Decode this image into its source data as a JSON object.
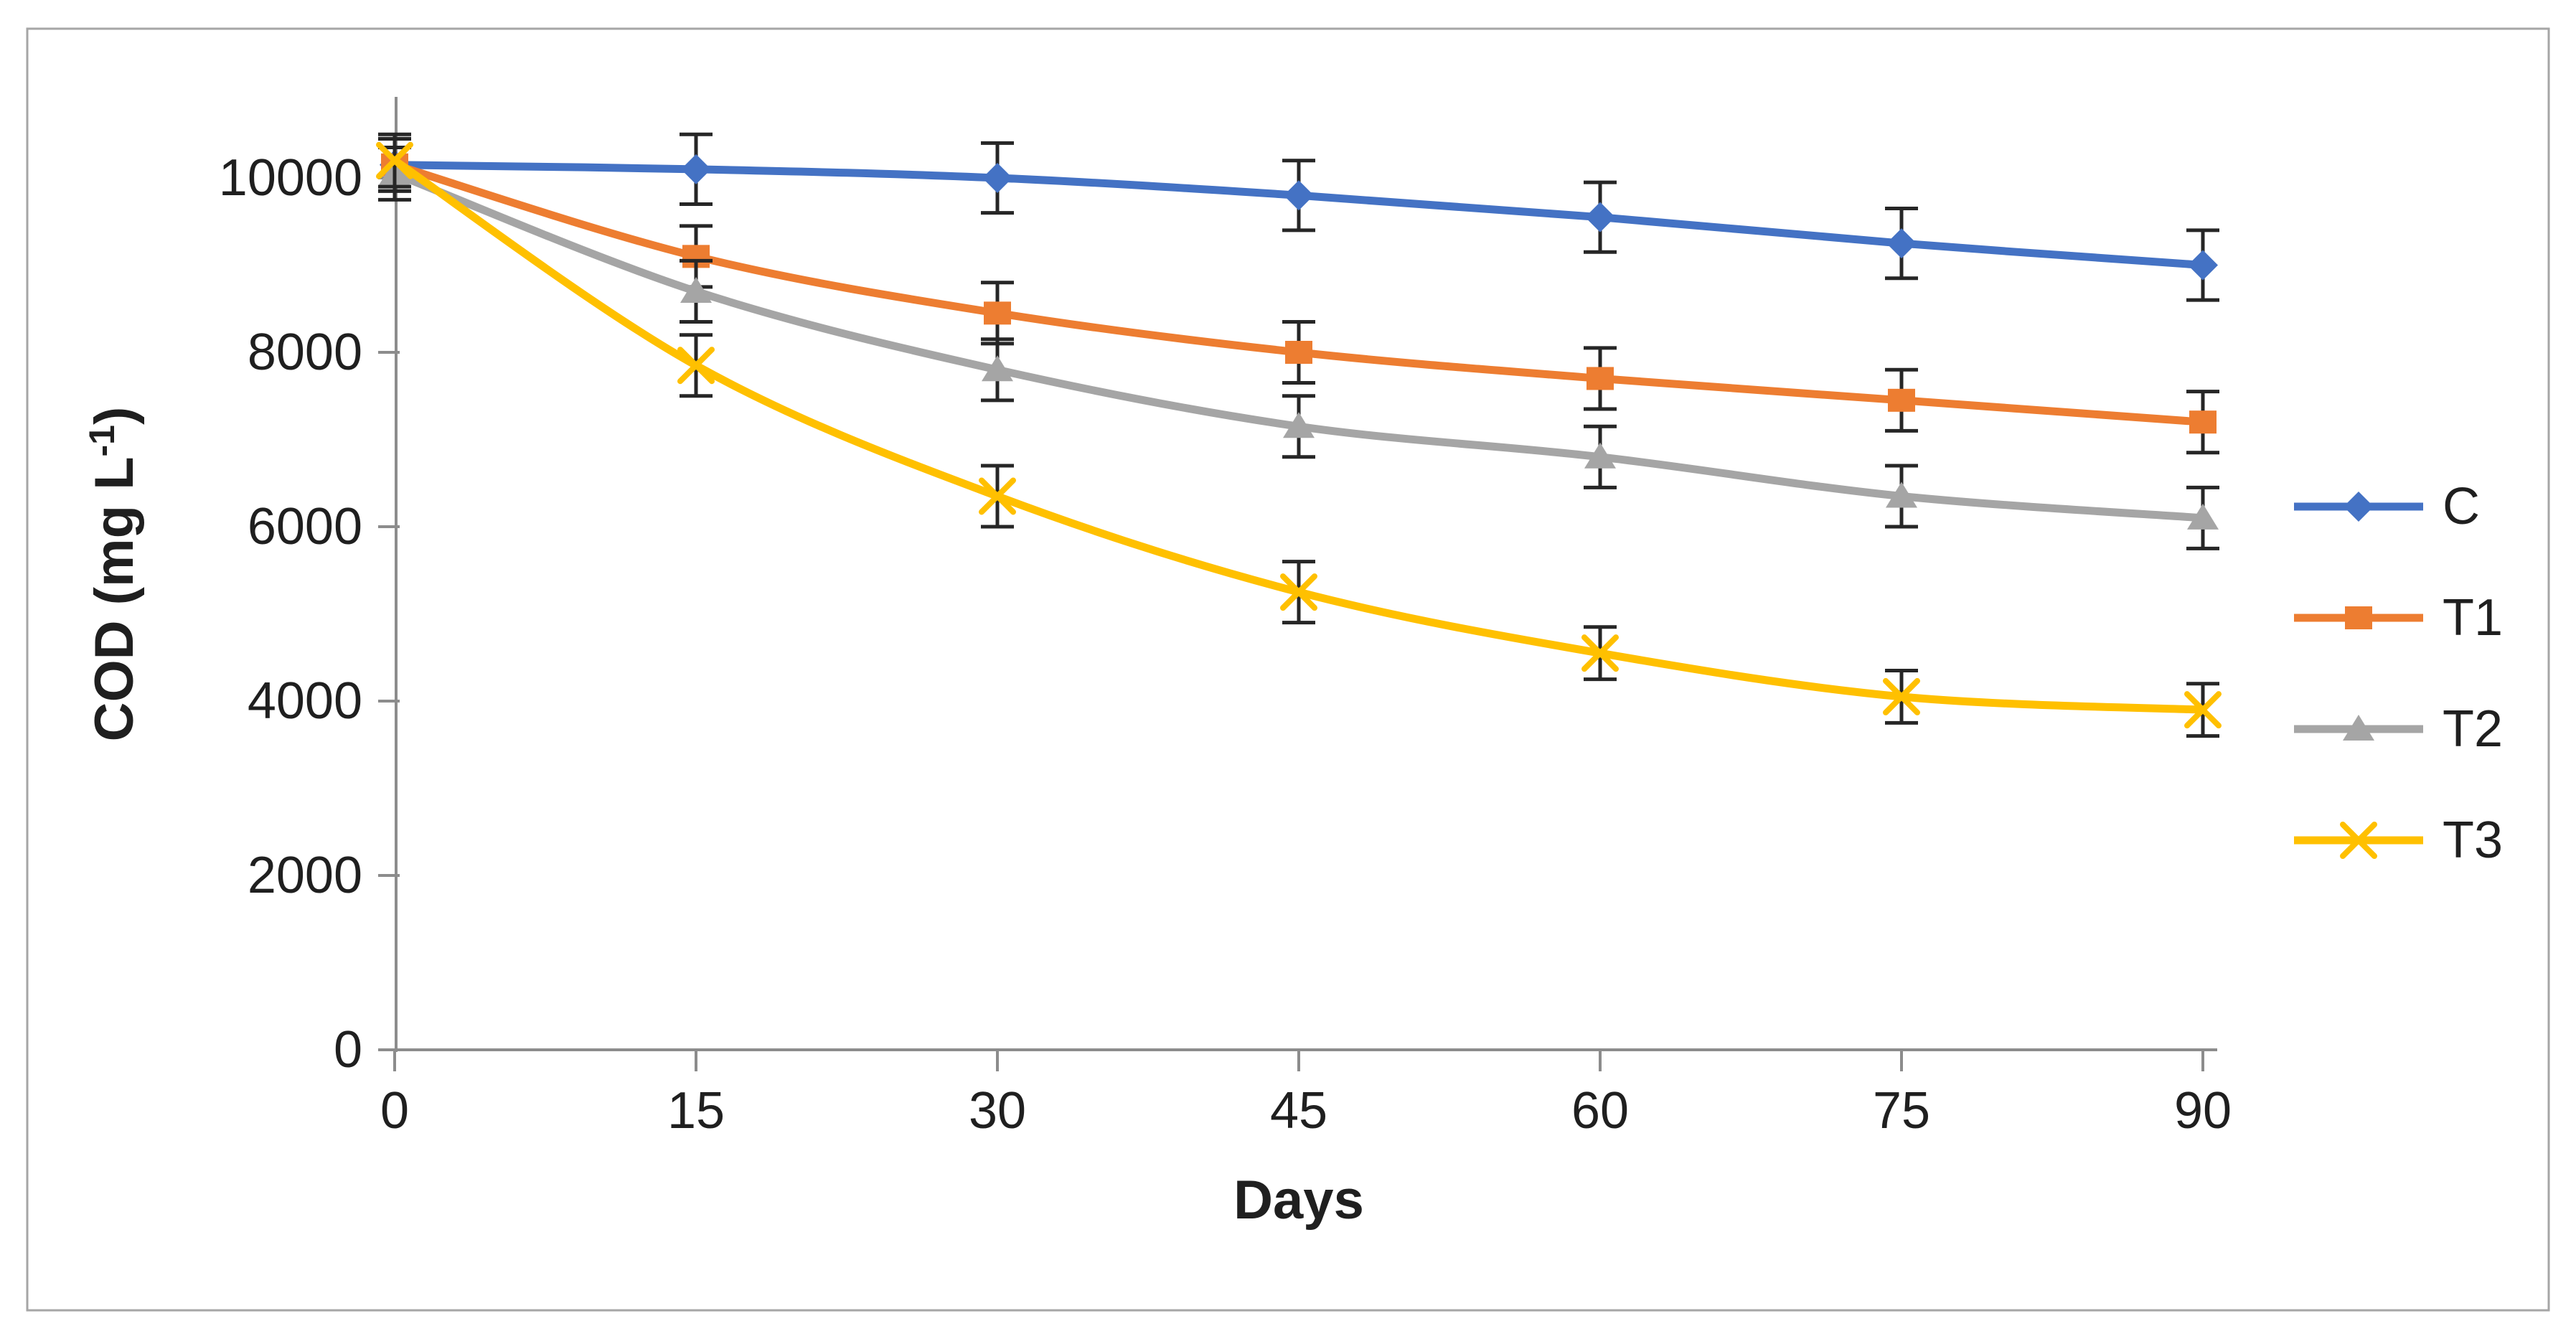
{
  "figure": {
    "background": "#ffffff",
    "border_color": "#a6a6a6"
  },
  "colors": {
    "axis": "#8c8c8c",
    "tick": "#8c8c8c",
    "error_bar": "#262626",
    "text": "#1f1f1f"
  },
  "axes": {
    "x_title": "Days",
    "y_title": "COD (mg L⁻¹)",
    "y_title_parts": {
      "prefix": "COD (mg L",
      "sup": "-1",
      "suffix": ")"
    },
    "x_tick_labels": [
      "0",
      "15",
      "30",
      "45",
      "60",
      "75",
      "90"
    ],
    "y_tick_labels": [
      "0",
      "2000",
      "4000",
      "6000",
      "8000",
      "10000"
    ]
  },
  "legend": {
    "entries": [
      "C",
      "T1",
      "T2",
      "T3"
    ]
  },
  "chart_data": {
    "type": "line",
    "smooth": true,
    "grid": false,
    "legend_position": "right",
    "x": [
      0,
      15,
      30,
      45,
      60,
      75,
      90
    ],
    "xlabel": "Days",
    "ylabel": "COD (mg L⁻¹)",
    "xlim": [
      0,
      90
    ],
    "ylim": [
      0,
      10900
    ],
    "xticks": [
      0,
      15,
      30,
      45,
      60,
      75,
      90
    ],
    "yticks": [
      0,
      2000,
      4000,
      6000,
      8000,
      10000
    ],
    "series": [
      {
        "name": "C",
        "color": "#4472c4",
        "marker": "diamond",
        "values": [
          10150,
          10100,
          10000,
          9800,
          9550,
          9250,
          9000
        ],
        "errors": [
          300,
          400,
          400,
          400,
          400,
          400,
          400
        ]
      },
      {
        "name": "T1",
        "color": "#ed7d31",
        "marker": "square",
        "values": [
          10150,
          9100,
          8450,
          8000,
          7700,
          7450,
          7200
        ],
        "errors": [
          300,
          350,
          350,
          350,
          350,
          350,
          350
        ]
      },
      {
        "name": "T2",
        "color": "#a5a5a5",
        "marker": "triangle",
        "values": [
          10050,
          8700,
          7800,
          7150,
          6800,
          6350,
          6100
        ],
        "errors": [
          300,
          350,
          350,
          350,
          350,
          350,
          350
        ]
      },
      {
        "name": "T3",
        "color": "#ffc000",
        "marker": "x",
        "values": [
          10200,
          7850,
          6350,
          5250,
          4550,
          4050,
          3900
        ],
        "errors": [
          300,
          350,
          350,
          350,
          300,
          300,
          300
        ]
      }
    ]
  }
}
